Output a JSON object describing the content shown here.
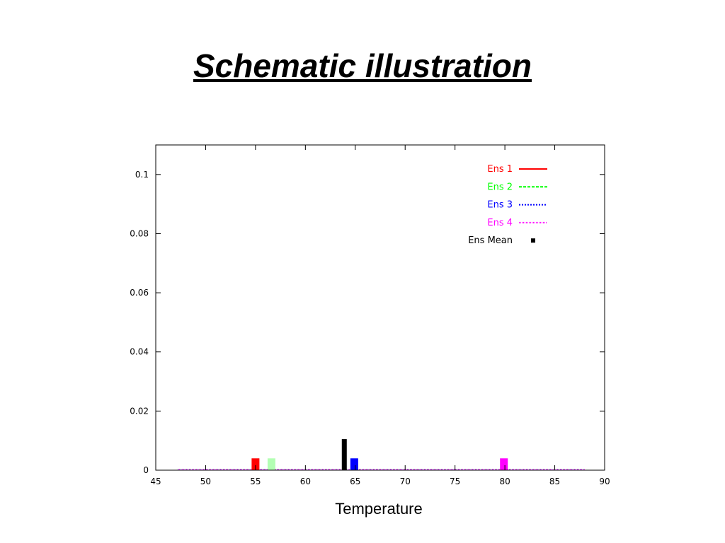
{
  "slide": {
    "title": "Schematic illustration"
  },
  "chart_data": {
    "type": "bar",
    "xlabel": "Temperature",
    "ylabel": "",
    "xlim": [
      45,
      90
    ],
    "ylim": [
      0,
      0.11
    ],
    "x_ticks": [
      45,
      50,
      55,
      60,
      65,
      70,
      75,
      80,
      85,
      90
    ],
    "y_ticks": [
      0,
      0.02,
      0.04,
      0.06,
      0.08,
      0.1
    ],
    "y_tick_labels": [
      "0",
      "0.02",
      "0.04",
      "0.06",
      "0.08",
      "0.1"
    ],
    "grid": false,
    "legend_position": "top-right",
    "series": [
      {
        "name": "Ens 1",
        "color": "#ff0000",
        "line_style": "solid",
        "x": [
          55
        ],
        "values": [
          0.004
        ]
      },
      {
        "name": "Ens 2",
        "color": "#00ff00",
        "bar_color": "#b3ffb3",
        "line_style": "dashed",
        "x": [
          56.6
        ],
        "values": [
          0.004
        ]
      },
      {
        "name": "Ens 3",
        "color": "#0000ff",
        "line_style": "dotted",
        "x": [
          64.9
        ],
        "values": [
          0.004
        ]
      },
      {
        "name": "Ens 4",
        "color": "#ff00ff",
        "line_style": "dense-dotted",
        "x": [
          79.9
        ],
        "values": [
          0.004
        ]
      },
      {
        "name": "Ens Mean",
        "color": "#000000",
        "line_style": "point",
        "x": [
          63.9
        ],
        "values": [
          0.0105
        ]
      }
    ]
  }
}
